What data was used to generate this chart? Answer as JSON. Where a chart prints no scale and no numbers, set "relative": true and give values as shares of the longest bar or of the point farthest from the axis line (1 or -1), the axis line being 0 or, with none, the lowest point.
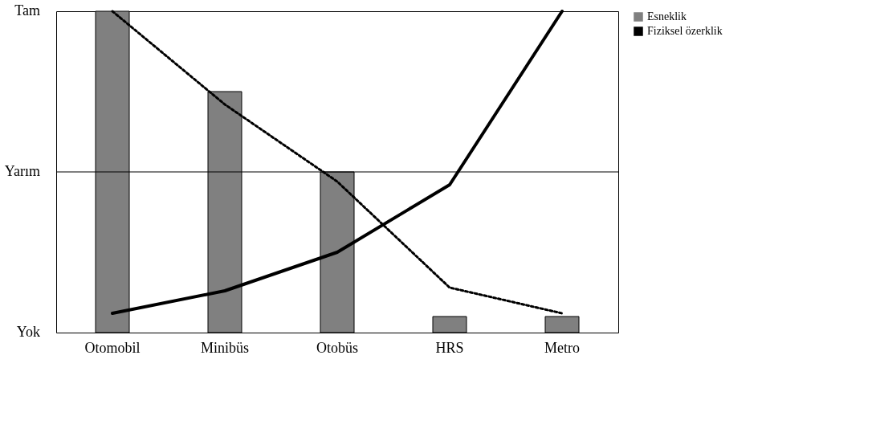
{
  "chart_data": {
    "type": "bar",
    "categories": [
      "Otomobil",
      "Minibüs",
      "Otobüs",
      "HRS",
      "Metro"
    ],
    "series": [
      {
        "name": "Esneklik",
        "color": "#808080",
        "values": [
          1,
          0.75,
          0.5,
          0.05,
          0.05
        ]
      },
      {
        "name": "Fiziksel özerklik",
        "type": "line",
        "color": "#000000",
        "line_style": "solid",
        "values": [
          0.06,
          0.13,
          0.25,
          0.46,
          1
        ]
      },
      {
        "type": "line",
        "color": "#000000",
        "line_style": "dotted",
        "values": [
          1,
          0.71,
          0.47,
          0.14,
          0.06
        ]
      }
    ],
    "relative": true,
    "annotations": [
      "Yok",
      "Yarım",
      "Tam"
    ],
    "ref_lines": [
      {
        "axis": "y",
        "value": 0.5,
        "color": "#000000"
      }
    ],
    "legend": "right",
    "grid": false
  }
}
